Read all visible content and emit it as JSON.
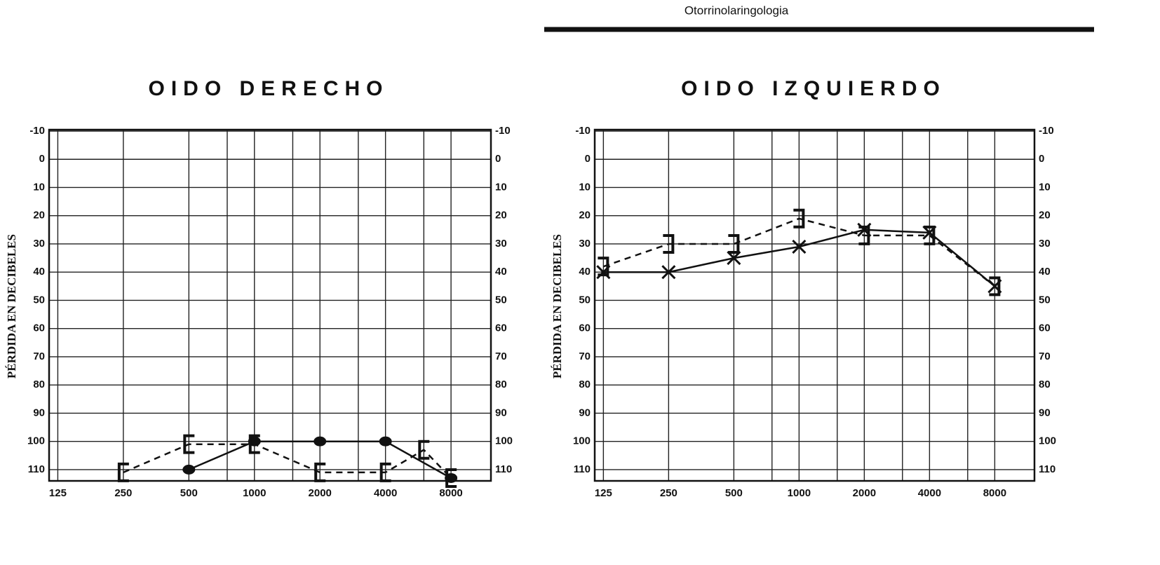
{
  "header": {
    "title": "Otorrinolaringologia"
  },
  "chart_data": [
    {
      "type": "line",
      "title": "OIDO DERECHO",
      "y_label": "PÉRDIDA EN DECIBELES",
      "xscale": "log",
      "xlim": [
        114,
        12200
      ],
      "xticks": [
        125,
        250,
        500,
        1000,
        2000,
        4000,
        8000
      ],
      "minor_xticks": [
        750,
        1500,
        3000,
        6000
      ],
      "ylim": [
        114,
        -10
      ],
      "yticks": [
        -10,
        0,
        10,
        20,
        30,
        40,
        50,
        60,
        70,
        80,
        90,
        100,
        110
      ],
      "grid": true,
      "y_labels_both_sides": true,
      "series": [
        {
          "color": "#111111",
          "line": "solid",
          "marker": "dot",
          "x": [
            500,
            1000,
            2000,
            4000,
            8000
          ],
          "values": [
            110,
            100,
            100,
            100,
            113
          ]
        },
        {
          "color": "#111111",
          "line": "dashed",
          "marker": "open-bracket",
          "x": [
            250,
            500,
            1000,
            2000,
            4000,
            6000,
            8000
          ],
          "values": [
            111,
            101,
            101,
            111,
            111,
            103,
            113
          ]
        }
      ]
    },
    {
      "type": "line",
      "title": "OIDO IZQUIERDO",
      "y_label": "PÉRDIDA EN DECIBELES",
      "xscale": "log",
      "xlim": [
        114,
        12200
      ],
      "xticks": [
        125,
        250,
        500,
        1000,
        2000,
        4000,
        8000
      ],
      "minor_xticks": [
        750,
        1500,
        3000,
        6000
      ],
      "ylim": [
        114,
        -10
      ],
      "yticks": [
        -10,
        0,
        10,
        20,
        30,
        40,
        50,
        60,
        70,
        80,
        90,
        100,
        110
      ],
      "grid": true,
      "y_labels_both_sides": true,
      "series": [
        {
          "color": "#111111",
          "line": "solid",
          "marker": "cross",
          "x": [
            125,
            250,
            500,
            1000,
            2000,
            4000,
            8000
          ],
          "values": [
            40,
            40,
            35,
            31,
            25,
            26,
            45
          ]
        },
        {
          "color": "#111111",
          "line": "dashed",
          "marker": "close-bracket",
          "x": [
            125,
            250,
            500,
            1000,
            2000,
            4000,
            8000
          ],
          "values": [
            38,
            30,
            30,
            21,
            27,
            27,
            45
          ]
        }
      ]
    }
  ]
}
